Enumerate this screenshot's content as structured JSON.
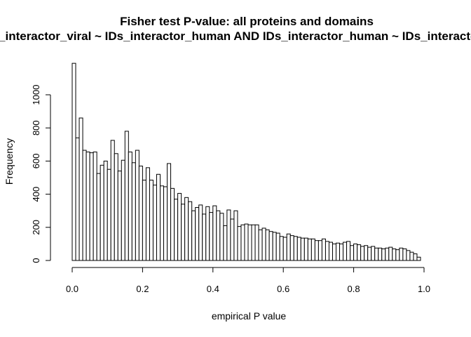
{
  "chart_data": {
    "type": "bar",
    "title": "Fisher test P-value: all proteins and domains",
    "subtitle": "IDs_interactor_viral ~ IDs_interactor_human AND IDs_interactor_human ~ IDs_interactor_viral",
    "xlabel": "empirical P value",
    "ylabel": "Frequency",
    "xlim": [
      0,
      1
    ],
    "ylim": [
      0,
      1200
    ],
    "x_ticks": [
      0.0,
      0.2,
      0.4,
      0.6,
      0.8,
      1.0
    ],
    "x_tick_labels": [
      "0.0",
      "0.2",
      "0.4",
      "0.6",
      "0.8",
      "1.0"
    ],
    "y_ticks": [
      0,
      200,
      400,
      600,
      800,
      1000
    ],
    "y_tick_labels": [
      "0",
      "200",
      "400",
      "600",
      "800",
      "1000"
    ],
    "bin_width": 0.01,
    "bin_start": 0.0,
    "values": [
      1190,
      740,
      860,
      665,
      655,
      650,
      655,
      525,
      575,
      600,
      550,
      725,
      645,
      540,
      605,
      780,
      655,
      590,
      665,
      570,
      485,
      560,
      485,
      455,
      520,
      450,
      445,
      585,
      435,
      370,
      405,
      340,
      380,
      355,
      300,
      320,
      335,
      280,
      325,
      290,
      330,
      300,
      285,
      210,
      305,
      250,
      300,
      205,
      215,
      220,
      215,
      215,
      215,
      185,
      195,
      185,
      175,
      170,
      165,
      145,
      140,
      160,
      150,
      145,
      140,
      135,
      135,
      130,
      130,
      120,
      120,
      130,
      115,
      110,
      100,
      105,
      100,
      110,
      115,
      90,
      100,
      95,
      85,
      90,
      80,
      85,
      75,
      75,
      70,
      75,
      80,
      70,
      65,
      75,
      70,
      60,
      50,
      40,
      20
    ],
    "bar_fill": "#ffffff",
    "bar_stroke": "#000000",
    "grid": false
  }
}
